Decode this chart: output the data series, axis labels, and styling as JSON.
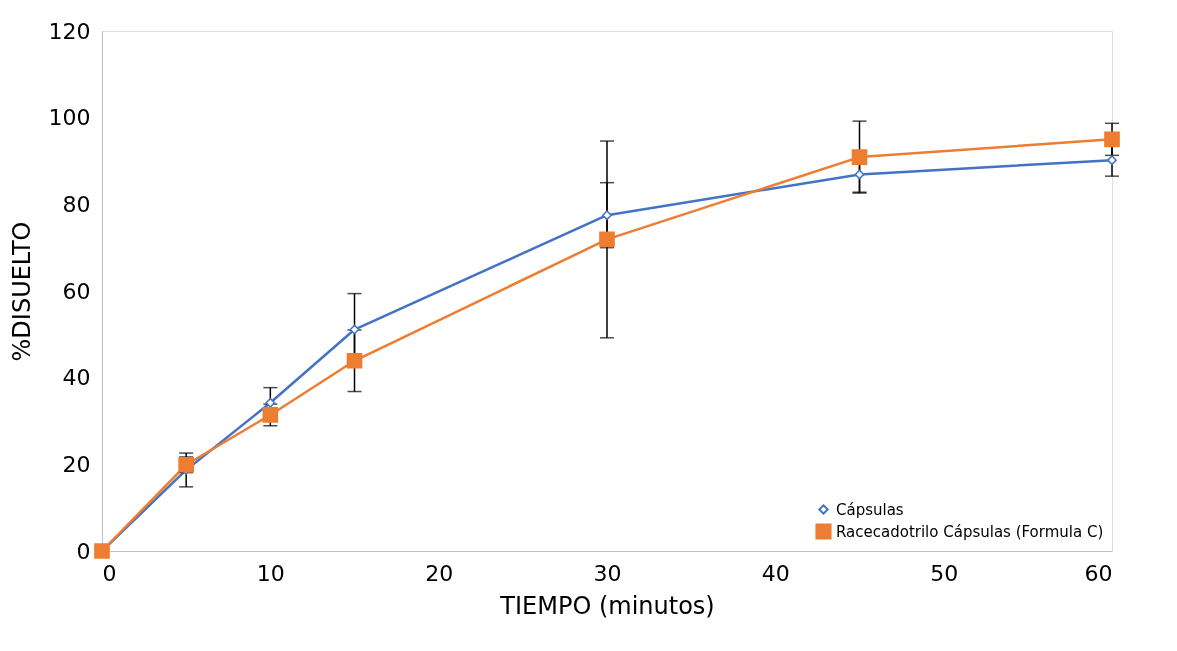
{
  "chart_data": {
    "type": "line",
    "xlabel": "TIEMPO (minutos)",
    "ylabel": "%DISUELTO",
    "x": [
      0,
      5,
      10,
      15,
      30,
      45,
      60
    ],
    "series": [
      {
        "name": "Cápsulas",
        "color": "#4472c4",
        "marker": "diamond",
        "values": [
          0,
          18.7,
          34.2,
          51.1,
          77.5,
          86.9,
          90.2
        ],
        "errors": [
          null,
          3.9,
          3.5,
          8.3,
          7.5,
          4.1,
          3.7
        ]
      },
      {
        "name": "Racecadotrilo Cápsulas (Formula C)",
        "color": "#ed7d31",
        "marker": "square",
        "values": [
          0,
          19.9,
          31.4,
          43.9,
          71.9,
          90.9,
          95.0
        ],
        "errors": [
          null,
          1.8,
          2.5,
          7.1,
          22.7,
          8.3,
          3.7
        ]
      }
    ],
    "xlim": [
      0,
      60
    ],
    "xticks": [
      0,
      10,
      20,
      30,
      40,
      50,
      60
    ],
    "ylim": [
      0,
      120
    ],
    "yticks": [
      0,
      20,
      40,
      60,
      80,
      100,
      120
    ],
    "grid": false,
    "legend": "bottom right",
    "line_style": "solid"
  }
}
